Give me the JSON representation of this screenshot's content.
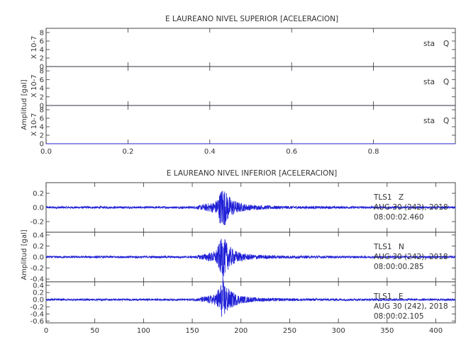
{
  "colors": {
    "trace": "#1f1fd6",
    "axis": "#333333",
    "background": "#ffffff"
  },
  "chart_data": [
    {
      "type": "line",
      "title": "E LAUREANO NIVEL SUPERIOR [ACELERACION]",
      "ylabel": "Amplitud [gal]",
      "xlim": [
        0.0,
        1.0
      ],
      "xticks": [
        "0.0",
        "0.2",
        "0.4",
        "0.6",
        "0.8"
      ],
      "panels": [
        {
          "yscale_label": "X 10-7",
          "yticks": [
            "8",
            "6",
            "4",
            "2",
            "0"
          ],
          "ylim": [
            0,
            9
          ],
          "station": "sta",
          "component": "Q",
          "values": [
            0,
            0
          ]
        },
        {
          "yscale_label": "X 10-7",
          "yticks": [
            "8",
            "6",
            "4",
            "2",
            "0"
          ],
          "ylim": [
            0,
            9
          ],
          "station": "sta",
          "component": "Q",
          "values": [
            0,
            0
          ]
        },
        {
          "yscale_label": "X 10-7",
          "yticks": [
            "8",
            "6",
            "4",
            "2",
            "0"
          ],
          "ylim": [
            0,
            9
          ],
          "station": "sta",
          "component": "Q",
          "values": [
            0,
            0
          ]
        }
      ]
    },
    {
      "type": "line",
      "title": "E LAUREANO NIVEL INFERIOR [ACELERACION]",
      "ylabel": "Amplitud [gal]",
      "xlim": [
        0,
        420
      ],
      "xticks": [
        "0",
        "50",
        "100",
        "150",
        "200",
        "250",
        "300",
        "350",
        "400"
      ],
      "waveform": {
        "onset_s": 152,
        "peak_s": 181,
        "noise_amplitude_fraction": 0.05,
        "peak_amplitude_fraction": 1.0,
        "samples": 2400
      },
      "panels": [
        {
          "station": "TLS1",
          "component": "Z",
          "date": "AUG 30 (242), 2018",
          "time": "08:00:02.460",
          "yticks": [
            "0.2",
            "0.0",
            "-0.2"
          ],
          "ylim": [
            -0.35,
            0.35
          ],
          "peak": 0.3
        },
        {
          "station": "TLS1",
          "component": "N",
          "date": "AUG 30 (242), 2018",
          "time": "08:00:00.285",
          "yticks": [
            "0.4",
            "0.2",
            "0.0",
            "-0.2",
            "-0.4"
          ],
          "ylim": [
            -0.45,
            0.45
          ],
          "peak": 0.38
        },
        {
          "station": "TLS1",
          "component": "E",
          "date": "AUG 30 (242), 2018",
          "time": "08:00:02.105",
          "yticks": [
            "0.4",
            "0.2",
            "0.0",
            "-0.2",
            "-0.4",
            "-0.6"
          ],
          "ylim": [
            -0.65,
            0.5
          ],
          "peak": 0.55
        }
      ]
    }
  ]
}
